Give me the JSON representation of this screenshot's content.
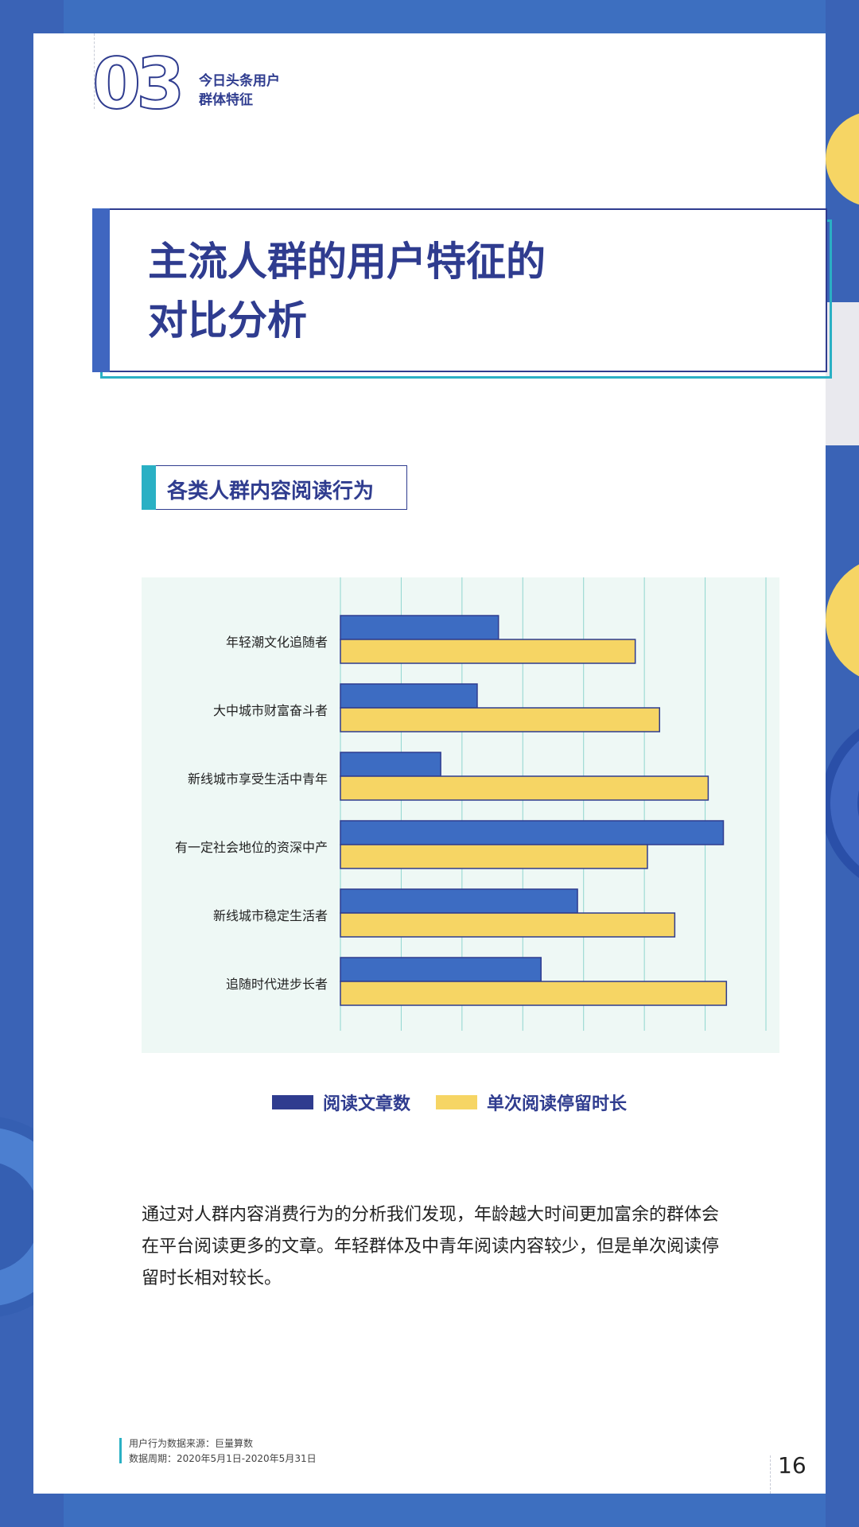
{
  "chapter": {
    "number": "03",
    "title": "今日头条用户\n群体特征"
  },
  "header": {
    "title": "主流人群的用户特征的\n对比分析"
  },
  "section": {
    "label": "各类人群内容阅读行为"
  },
  "chart_data": {
    "type": "bar",
    "orientation": "horizontal",
    "title": "",
    "categories": [
      "年轻潮文化追随者",
      "大中城市财富奋斗者",
      "新线城市享受生活中青年",
      "有一定社会地位的资深中产",
      "新线城市稳定生活者",
      "追随时代进步长者"
    ],
    "series": [
      {
        "name": "阅读文章数",
        "color": "#3d6cc2",
        "values": [
          2.6,
          2.25,
          1.65,
          6.3,
          3.9,
          3.3
        ]
      },
      {
        "name": "单次阅读停留时长",
        "color": "#f6d564",
        "values": [
          4.85,
          5.25,
          6.05,
          5.05,
          5.5,
          6.35
        ]
      }
    ],
    "xlim": [
      0,
      7
    ],
    "grid": true,
    "legend_position": "bottom",
    "xlabel": "",
    "ylabel": ""
  },
  "body": {
    "paragraph": "通过对人群内容消费行为的分析我们发现，年龄越大时间更加富余的群体会\n在平台阅读更多的文章。年轻群体及中青年阅读内容较少，但是单次阅读停\n留时长相对较长。"
  },
  "footer": {
    "source": "用户行为数据来源：巨量算数\n数据周期：2020年5月1日-2020年5月31日",
    "page_number": "16"
  },
  "colors": {
    "navy": "#2f3c8f",
    "teal": "#2ab0c4",
    "blue": "#3d6cc2",
    "yellow": "#f6d564"
  }
}
